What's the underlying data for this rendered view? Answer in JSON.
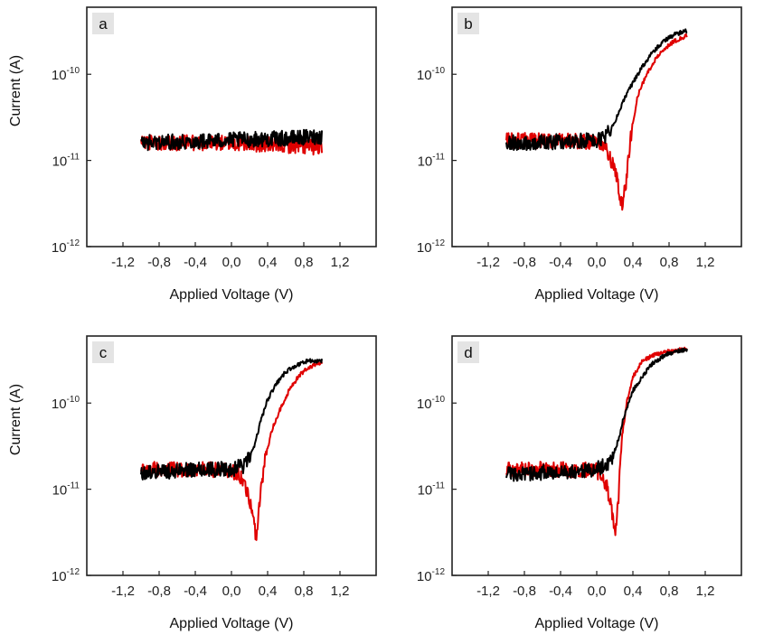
{
  "chart_data": [
    {
      "type": "line",
      "panel_label": "a",
      "xlabel": "Applied Voltage (V)",
      "ylabel": "Current (A)",
      "y_scale": "log",
      "xlim": [
        -1.6,
        1.6
      ],
      "ylim": [
        1e-12,
        6e-10
      ],
      "x_ticks": [
        "-1,2",
        "-0,8",
        "-0,4",
        "0,0",
        "0,4",
        "0,8",
        "1,2"
      ],
      "y_ticks": [
        {
          "base": "10",
          "exp": "-10"
        },
        {
          "base": "10",
          "exp": "-11"
        },
        {
          "base": "10",
          "exp": "-12"
        }
      ],
      "series": [
        {
          "color": "#e00000",
          "points": [
            [
              -1.0,
              1.65e-11
            ],
            [
              -0.6,
              1.6e-11
            ],
            [
              -0.2,
              1.6e-11
            ],
            [
              0.2,
              1.55e-11
            ],
            [
              0.6,
              1.5e-11
            ],
            [
              1.0,
              1.4e-11
            ]
          ]
        },
        {
          "color": "#000000",
          "points": [
            [
              -1.0,
              1.6e-11
            ],
            [
              -0.6,
              1.65e-11
            ],
            [
              -0.2,
              1.7e-11
            ],
            [
              0.2,
              1.75e-11
            ],
            [
              0.6,
              1.8e-11
            ],
            [
              1.0,
              1.9e-11
            ]
          ]
        }
      ]
    },
    {
      "type": "line",
      "panel_label": "b",
      "xlabel": "Applied Voltage (V)",
      "ylabel": "",
      "y_scale": "log",
      "xlim": [
        -1.6,
        1.6
      ],
      "ylim": [
        1e-12,
        6e-10
      ],
      "x_ticks": [
        "-1,2",
        "-0,8",
        "-0,4",
        "0,0",
        "0,4",
        "0,8",
        "1,2"
      ],
      "y_ticks": [
        {
          "base": "10",
          "exp": "-10"
        },
        {
          "base": "10",
          "exp": "-11"
        },
        {
          "base": "10",
          "exp": "-12"
        }
      ],
      "series": [
        {
          "color": "#e00000",
          "points": [
            [
              -1.0,
              1.7e-11
            ],
            [
              -0.4,
              1.7e-11
            ],
            [
              0.0,
              1.65e-11
            ],
            [
              0.1,
              1.4e-11
            ],
            [
              0.18,
              9e-12
            ],
            [
              0.24,
              5e-12
            ],
            [
              0.28,
              3e-12
            ],
            [
              0.32,
              5e-12
            ],
            [
              0.38,
              2e-11
            ],
            [
              0.45,
              5.5e-11
            ],
            [
              0.55,
              1e-10
            ],
            [
              0.65,
              1.5e-10
            ],
            [
              0.75,
              2e-10
            ],
            [
              0.85,
              2.4e-10
            ],
            [
              1.0,
              2.8e-10
            ]
          ]
        },
        {
          "color": "#000000",
          "points": [
            [
              -1.0,
              1.6e-11
            ],
            [
              -0.4,
              1.65e-11
            ],
            [
              0.0,
              1.7e-11
            ],
            [
              0.1,
              1.9e-11
            ],
            [
              0.2,
              2.8e-11
            ],
            [
              0.3,
              5e-11
            ],
            [
              0.4,
              8e-11
            ],
            [
              0.5,
              1.2e-10
            ],
            [
              0.6,
              1.7e-10
            ],
            [
              0.7,
              2.2e-10
            ],
            [
              0.8,
              2.7e-10
            ],
            [
              0.9,
              3e-10
            ],
            [
              1.0,
              3.2e-10
            ]
          ]
        }
      ]
    },
    {
      "type": "line",
      "panel_label": "c",
      "xlabel": "Applied Voltage (V)",
      "ylabel": "Current (A)",
      "y_scale": "log",
      "xlim": [
        -1.6,
        1.6
      ],
      "ylim": [
        1e-12,
        6e-10
      ],
      "x_ticks": [
        "-1,2",
        "-0,8",
        "-0,4",
        "0,0",
        "0,4",
        "0,8",
        "1,2"
      ],
      "y_ticks": [
        {
          "base": "10",
          "exp": "-10"
        },
        {
          "base": "10",
          "exp": "-11"
        },
        {
          "base": "10",
          "exp": "-12"
        }
      ],
      "series": [
        {
          "color": "#e00000",
          "points": [
            [
              -1.0,
              1.7e-11
            ],
            [
              -0.4,
              1.7e-11
            ],
            [
              0.0,
              1.65e-11
            ],
            [
              0.1,
              1.4e-11
            ],
            [
              0.18,
              9e-12
            ],
            [
              0.24,
              4.5e-12
            ],
            [
              0.27,
              2.7e-12
            ],
            [
              0.3,
              5e-12
            ],
            [
              0.36,
              2e-11
            ],
            [
              0.45,
              5e-11
            ],
            [
              0.55,
              9e-11
            ],
            [
              0.65,
              1.5e-10
            ],
            [
              0.75,
              2.1e-10
            ],
            [
              0.85,
              2.6e-10
            ],
            [
              1.0,
              3e-10
            ]
          ]
        },
        {
          "color": "#000000",
          "points": [
            [
              -1.0,
              1.55e-11
            ],
            [
              -0.4,
              1.7e-11
            ],
            [
              0.0,
              1.7e-11
            ],
            [
              0.15,
              1.9e-11
            ],
            [
              0.25,
              3e-11
            ],
            [
              0.32,
              6e-11
            ],
            [
              0.4,
              1.1e-10
            ],
            [
              0.5,
              1.7e-10
            ],
            [
              0.6,
              2.3e-10
            ],
            [
              0.7,
              2.7e-10
            ],
            [
              0.8,
              3e-10
            ],
            [
              0.9,
              3.1e-10
            ],
            [
              1.0,
              3.1e-10
            ]
          ]
        }
      ]
    },
    {
      "type": "line",
      "panel_label": "d",
      "xlabel": "Applied Voltage (V)",
      "ylabel": "",
      "y_scale": "log",
      "xlim": [
        -1.6,
        1.6
      ],
      "ylim": [
        1e-12,
        6e-10
      ],
      "x_ticks": [
        "-1,2",
        "-0,8",
        "-0,4",
        "0,0",
        "0,4",
        "0,8",
        "1,2"
      ],
      "y_ticks": [
        {
          "base": "10",
          "exp": "-10"
        },
        {
          "base": "10",
          "exp": "-11"
        },
        {
          "base": "10",
          "exp": "-12"
        }
      ],
      "series": [
        {
          "color": "#e00000",
          "points": [
            [
              -1.0,
              1.7e-11
            ],
            [
              -0.4,
              1.7e-11
            ],
            [
              0.0,
              1.65e-11
            ],
            [
              0.1,
              1.2e-11
            ],
            [
              0.16,
              6e-12
            ],
            [
              0.2,
              3e-12
            ],
            [
              0.24,
              8e-12
            ],
            [
              0.28,
              4e-11
            ],
            [
              0.33,
              1e-10
            ],
            [
              0.4,
              2e-10
            ],
            [
              0.5,
              3e-10
            ],
            [
              0.6,
              3.5e-10
            ],
            [
              0.7,
              3.8e-10
            ],
            [
              0.8,
              4e-10
            ],
            [
              1.0,
              4.3e-10
            ]
          ]
        },
        {
          "color": "#000000",
          "points": [
            [
              -1.0,
              1.5e-11
            ],
            [
              -0.4,
              1.6e-11
            ],
            [
              0.0,
              1.7e-11
            ],
            [
              0.15,
              2e-11
            ],
            [
              0.25,
              4e-11
            ],
            [
              0.3,
              7e-11
            ],
            [
              0.35,
              1e-10
            ],
            [
              0.4,
              1.4e-10
            ],
            [
              0.5,
              2e-10
            ],
            [
              0.6,
              2.8e-10
            ],
            [
              0.7,
              3.3e-10
            ],
            [
              0.8,
              3.8e-10
            ],
            [
              1.0,
              4.2e-10
            ]
          ]
        }
      ]
    }
  ]
}
